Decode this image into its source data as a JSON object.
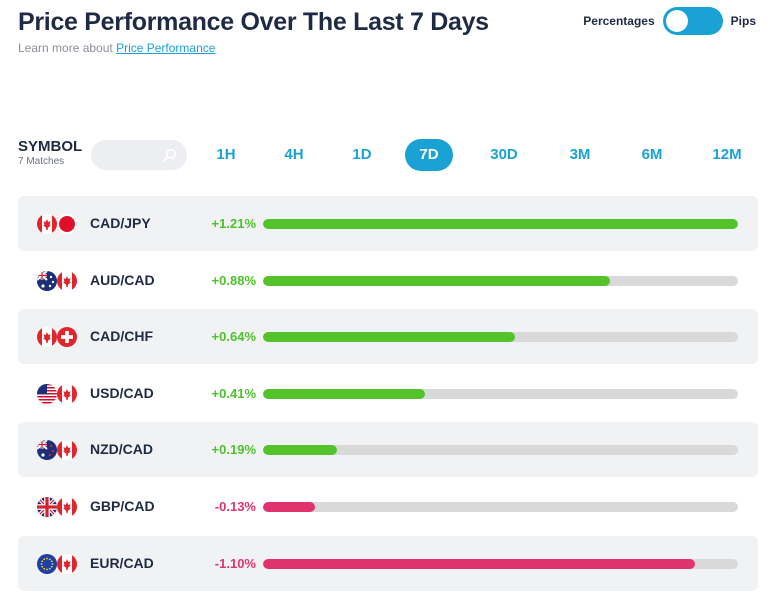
{
  "header": {
    "title": "Price Performance Over The Last 7 Days",
    "learn_prefix": "Learn more about ",
    "learn_link": "Price Performance"
  },
  "toggle": {
    "left_label": "Percentages",
    "right_label": "Pips",
    "state": "percentages"
  },
  "symbol": {
    "title": "SYMBOL",
    "matches": "7 Matches",
    "search_placeholder": ""
  },
  "timeframes": [
    {
      "label": "1H",
      "active": false
    },
    {
      "label": "4H",
      "active": false
    },
    {
      "label": "1D",
      "active": false
    },
    {
      "label": "7D",
      "active": true
    },
    {
      "label": "30D",
      "active": false
    },
    {
      "label": "3M",
      "active": false
    },
    {
      "label": "6M",
      "active": false
    },
    {
      "label": "12M",
      "active": false
    }
  ],
  "colors": {
    "accent": "#1aa2d4",
    "positive": "#53c22b",
    "negative": "#e0336d",
    "track": "#d9d9d9",
    "row_shade": "#f1f2f4"
  },
  "rows": [
    {
      "pair": "CAD/JPY",
      "change": "+1.21%",
      "value": 1.21,
      "fill": 1.0,
      "direction": "positive",
      "flags": [
        "canada",
        "japan"
      ]
    },
    {
      "pair": "AUD/CAD",
      "change": "+0.88%",
      "value": 0.88,
      "fill": 0.73,
      "direction": "positive",
      "flags": [
        "australia",
        "canada"
      ]
    },
    {
      "pair": "CAD/CHF",
      "change": "+0.64%",
      "value": 0.64,
      "fill": 0.53,
      "direction": "positive",
      "flags": [
        "canada",
        "switzerland"
      ]
    },
    {
      "pair": "USD/CAD",
      "change": "+0.41%",
      "value": 0.41,
      "fill": 0.34,
      "direction": "positive",
      "flags": [
        "usa",
        "canada"
      ]
    },
    {
      "pair": "NZD/CAD",
      "change": "+0.19%",
      "value": 0.19,
      "fill": 0.155,
      "direction": "positive",
      "flags": [
        "new-zealand",
        "canada"
      ]
    },
    {
      "pair": "GBP/CAD",
      "change": "-0.13%",
      "value": -0.13,
      "fill": 0.11,
      "direction": "negative",
      "flags": [
        "uk",
        "canada"
      ]
    },
    {
      "pair": "EUR/CAD",
      "change": "-1.10%",
      "value": -1.1,
      "fill": 0.91,
      "direction": "negative",
      "flags": [
        "eu",
        "canada"
      ]
    }
  ]
}
